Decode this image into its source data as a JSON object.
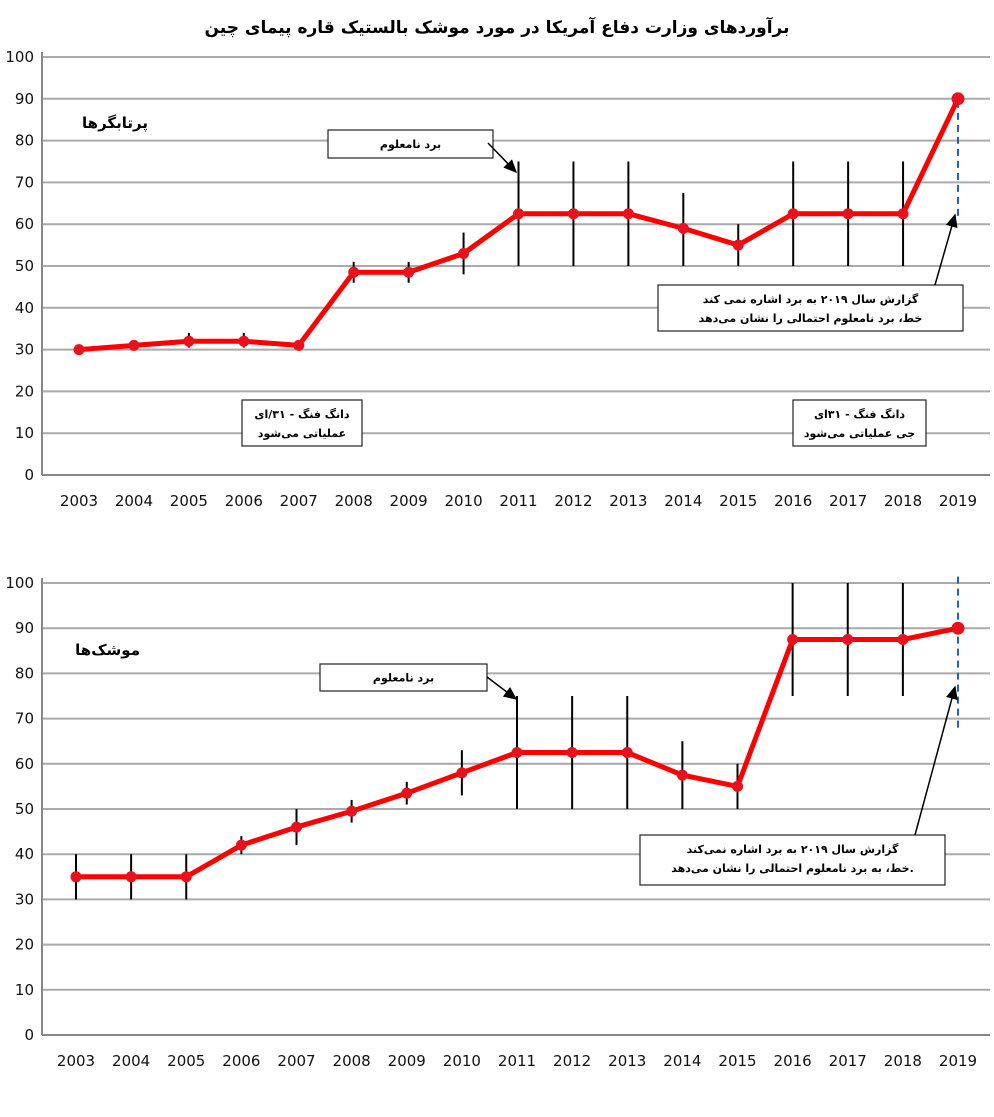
{
  "title": "برآوردهای وزارت دفاع آمریکا در مورد موشک بالستیک قاره پیمای چین",
  "chart_data": [
    {
      "type": "line",
      "series_label": "پرتابگرها",
      "categories": [
        "2003",
        "2004",
        "2005",
        "2006",
        "2007",
        "2008",
        "2009",
        "2010",
        "2011",
        "2012",
        "2013",
        "2014",
        "2015",
        "2016",
        "2017",
        "2018",
        "2019"
      ],
      "values": [
        30,
        31,
        32,
        32,
        31,
        48.5,
        48.5,
        53,
        62.5,
        62.5,
        62.5,
        59,
        55,
        62.5,
        62.5,
        62.5,
        90
      ],
      "error_low": [
        null,
        null,
        30.5,
        30.5,
        null,
        46,
        46,
        48,
        50,
        50,
        50,
        50,
        50,
        50,
        50,
        50,
        62
      ],
      "error_high": [
        null,
        null,
        34,
        34,
        null,
        51,
        51,
        58,
        75,
        75,
        75,
        67.5,
        60,
        75,
        75,
        75,
        90
      ],
      "ylim": [
        0,
        100
      ],
      "yticks": [
        "0",
        "10",
        "20",
        "30",
        "40",
        "50",
        "60",
        "70",
        "80",
        "90",
        "100"
      ],
      "grid": true,
      "annotations": [
        "برد نامعلوم",
        "گزارش سال ۲۰۱۹ به برد اشاره نمی کند",
        "خط، برد نامعلوم احتمالی را نشان می‌دهد",
        "دانگ فنگ - ۳۱/ای",
        "عملیاتی می‌شود",
        "دانگ فنگ - ۳۱ای",
        "جی عملیاتی می‌شود"
      ],
      "colors": {
        "line": "#ff0000",
        "point": "#e8121e",
        "error": "#000000",
        "dashed": "#1f5fd0"
      }
    },
    {
      "type": "line",
      "series_label": "موشک‌ها",
      "categories": [
        "2003",
        "2004",
        "2005",
        "2006",
        "2007",
        "2008",
        "2009",
        "2010",
        "2011",
        "2012",
        "2013",
        "2014",
        "2015",
        "2016",
        "2017",
        "2018",
        "2019"
      ],
      "values": [
        35,
        35,
        35,
        42,
        46,
        49.5,
        53.5,
        58,
        62.5,
        62.5,
        62.5,
        57.5,
        55,
        87.5,
        87.5,
        87.5,
        90
      ],
      "error_low": [
        30,
        30,
        30,
        40,
        42,
        47,
        51,
        53,
        50,
        50,
        50,
        50,
        50,
        75,
        75,
        75,
        68
      ],
      "error_high": [
        40,
        40,
        40,
        44,
        50,
        52,
        56,
        63,
        75,
        75,
        75,
        65,
        60,
        100,
        100,
        100,
        102
      ],
      "ylim": [
        0,
        100
      ],
      "yticks": [
        "0",
        "10",
        "20",
        "30",
        "40",
        "50",
        "60",
        "70",
        "80",
        "90",
        "100"
      ],
      "grid": true,
      "annotations": [
        "برد نامعلوم",
        "گزارش سال ۲۰۱۹ به برد اشاره نمی‌کند",
        "خط، به برد نامعلوم احتمالی را نشان می‌دهد."
      ],
      "colors": {
        "line": "#ff0000",
        "point": "#e8121e",
        "error": "#000000",
        "dashed": "#1f5fd0"
      }
    }
  ]
}
